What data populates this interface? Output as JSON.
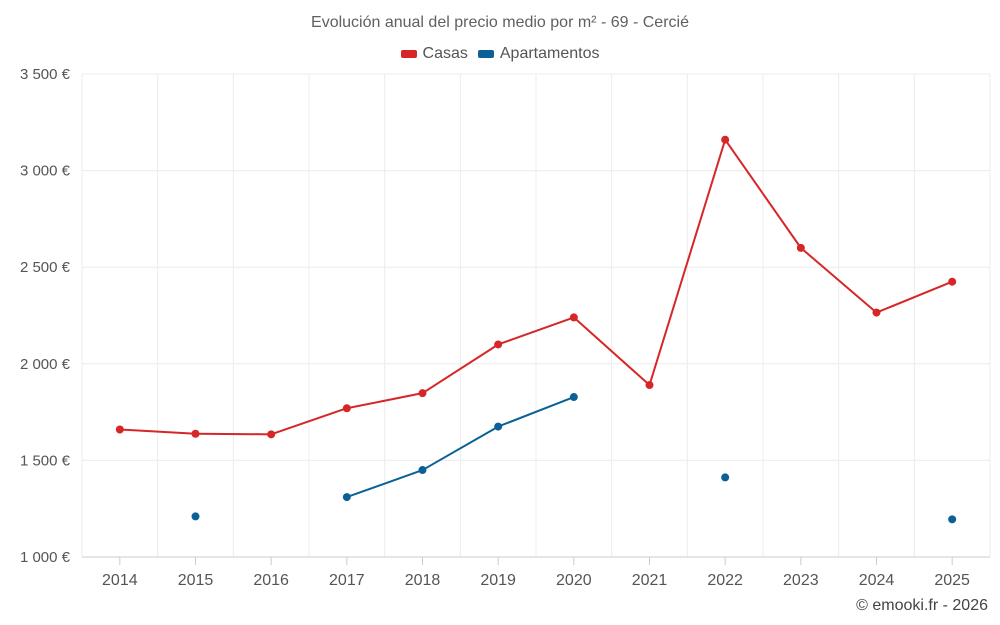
{
  "chart_data": {
    "type": "line",
    "title": "Evolución anual del precio medio por m² - 69 - Cercié",
    "categories": [
      "2014",
      "2015",
      "2016",
      "2017",
      "2018",
      "2019",
      "2020",
      "2021",
      "2022",
      "2023",
      "2024",
      "2025"
    ],
    "series": [
      {
        "name": "Casas",
        "color": "#d62728",
        "values": [
          1660,
          1638,
          1635,
          1770,
          1848,
          2100,
          2240,
          1890,
          3160,
          2600,
          2265,
          2425
        ]
      },
      {
        "name": "Apartamentos",
        "color": "#0b6196",
        "values": [
          null,
          1210,
          null,
          1310,
          1450,
          1675,
          1828,
          null,
          1412,
          null,
          null,
          1195
        ]
      }
    ],
    "y_ticks": [
      1000,
      1500,
      2000,
      2500,
      3000,
      3500
    ],
    "y_tick_labels": [
      "1 000 €",
      "1 500 €",
      "2 000 €",
      "2 500 €",
      "3 000 €",
      "3 500 €"
    ],
    "ylim": [
      1000,
      3500
    ],
    "xlabel": "",
    "ylabel": "",
    "legend_position": "top-center",
    "grid": true
  },
  "credit": "© emooki.fr - 2026"
}
